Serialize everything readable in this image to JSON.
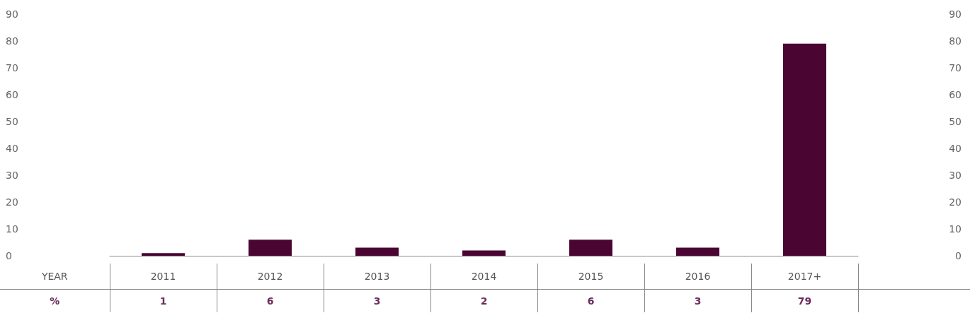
{
  "chart_data": {
    "type": "bar",
    "xlabel": "YEAR",
    "ylabel": "%",
    "categories": [
      "2011",
      "2012",
      "2013",
      "2014",
      "2015",
      "2016",
      "2017+"
    ],
    "values": [
      1,
      6,
      3,
      2,
      6,
      3,
      79
    ],
    "color": "#4a0533",
    "ylim": [
      0,
      90
    ],
    "yticks": [
      0,
      10,
      20,
      30,
      40,
      50,
      60,
      70,
      80,
      90
    ],
    "y2lim": [
      0,
      90
    ],
    "y2ticks": [
      0,
      10,
      20,
      30,
      40,
      50,
      60,
      70,
      80,
      90
    ],
    "data_labels": true
  }
}
